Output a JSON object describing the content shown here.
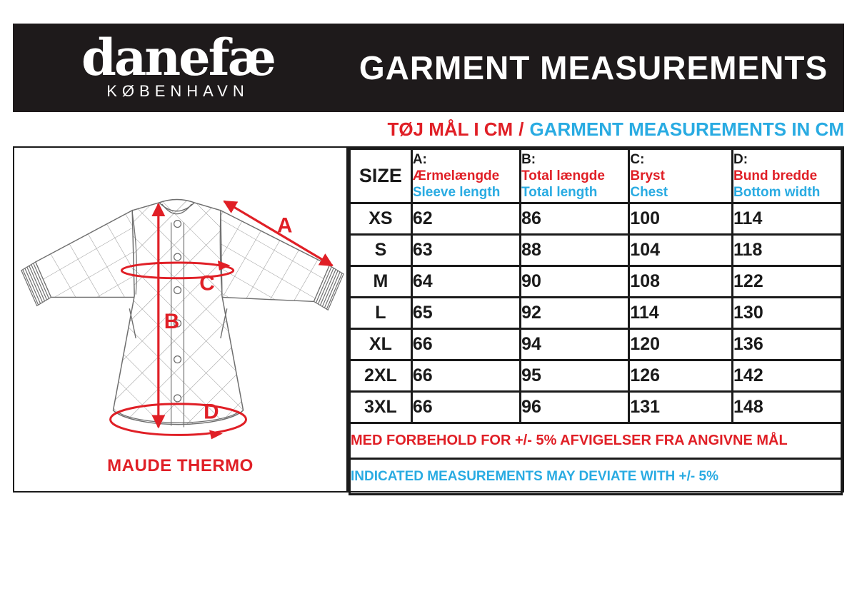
{
  "brand": {
    "logo": "danefæ",
    "city": "KØBENHAVN"
  },
  "header": {
    "title": "GARMENT MEASUREMENTS"
  },
  "subtitle": {
    "danish": "TØJ MÅL I CM",
    "separator": "/",
    "english": "GARMENT MEASUREMENTS IN CM"
  },
  "diagram": {
    "product_name": "MAUDE THERMO",
    "labels": {
      "a": "A",
      "b": "B",
      "c": "C",
      "d": "D"
    }
  },
  "table": {
    "size_header": "SIZE",
    "columns": [
      {
        "key": "A:",
        "danish": "Ærmelængde",
        "english": "Sleeve length"
      },
      {
        "key": "B:",
        "danish": "Total længde",
        "english": "Total length"
      },
      {
        "key": "C:",
        "danish": "Bryst",
        "english": "Chest"
      },
      {
        "key": "D:",
        "danish": "Bund bredde",
        "english": "Bottom width"
      }
    ],
    "rows": [
      {
        "size": "XS",
        "values": [
          "62",
          "86",
          "100",
          "114"
        ]
      },
      {
        "size": "S",
        "values": [
          "63",
          "88",
          "104",
          "118"
        ]
      },
      {
        "size": "M",
        "values": [
          "64",
          "90",
          "108",
          "122"
        ]
      },
      {
        "size": "L",
        "values": [
          "65",
          "92",
          "114",
          "130"
        ]
      },
      {
        "size": "XL",
        "values": [
          "66",
          "94",
          "120",
          "136"
        ]
      },
      {
        "size": "2XL",
        "values": [
          "66",
          "95",
          "126",
          "142"
        ]
      },
      {
        "size": "3XL",
        "values": [
          "66",
          "96",
          "131",
          "148"
        ]
      }
    ],
    "notes": {
      "danish": "MED FORBEHOLD FOR +/- 5% AFVIGELSER FRA ANGIVNE MÅL",
      "english": "INDICATED MEASUREMENTS MAY DEVIATE WITH +/- 5%"
    }
  },
  "colors": {
    "accent_red": "#E01F26",
    "accent_blue": "#29ABE2",
    "banner_black": "#1E1A1B",
    "border_black": "#1A1A1A"
  }
}
